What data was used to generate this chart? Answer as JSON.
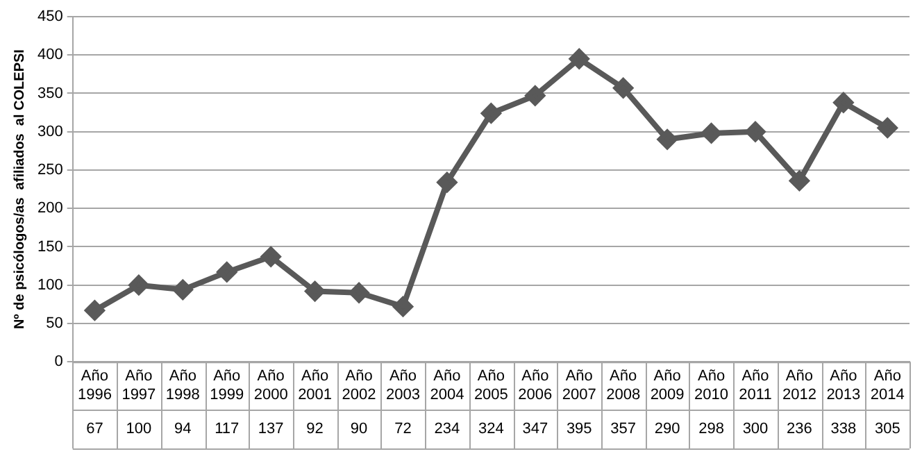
{
  "chart_data": {
    "type": "line",
    "ylabel": "Nº de psicólogos/as  afiliados  al COLEPSI",
    "categories": [
      "Año 1996",
      "Año 1997",
      "Año 1998",
      "Año 1999",
      "Año 2000",
      "Año 2001",
      "Año 2002",
      "Año 2003",
      "Año 2004",
      "Año 2005",
      "Año 2006",
      "Año 2007",
      "Año 2008",
      "Año 2009",
      "Año 2010",
      "Año 2011",
      "Año 2012",
      "Año 2013",
      "Año 2014"
    ],
    "values": [
      67,
      100,
      94,
      117,
      137,
      92,
      90,
      72,
      234,
      324,
      347,
      395,
      357,
      290,
      298,
      300,
      236,
      338,
      305
    ],
    "color": "#595959",
    "ylim": [
      0,
      450
    ],
    "yticks": [
      0,
      50,
      100,
      150,
      200,
      250,
      300,
      350,
      400,
      450
    ],
    "grid": "y",
    "marker": "diamond",
    "data_labels": true
  }
}
